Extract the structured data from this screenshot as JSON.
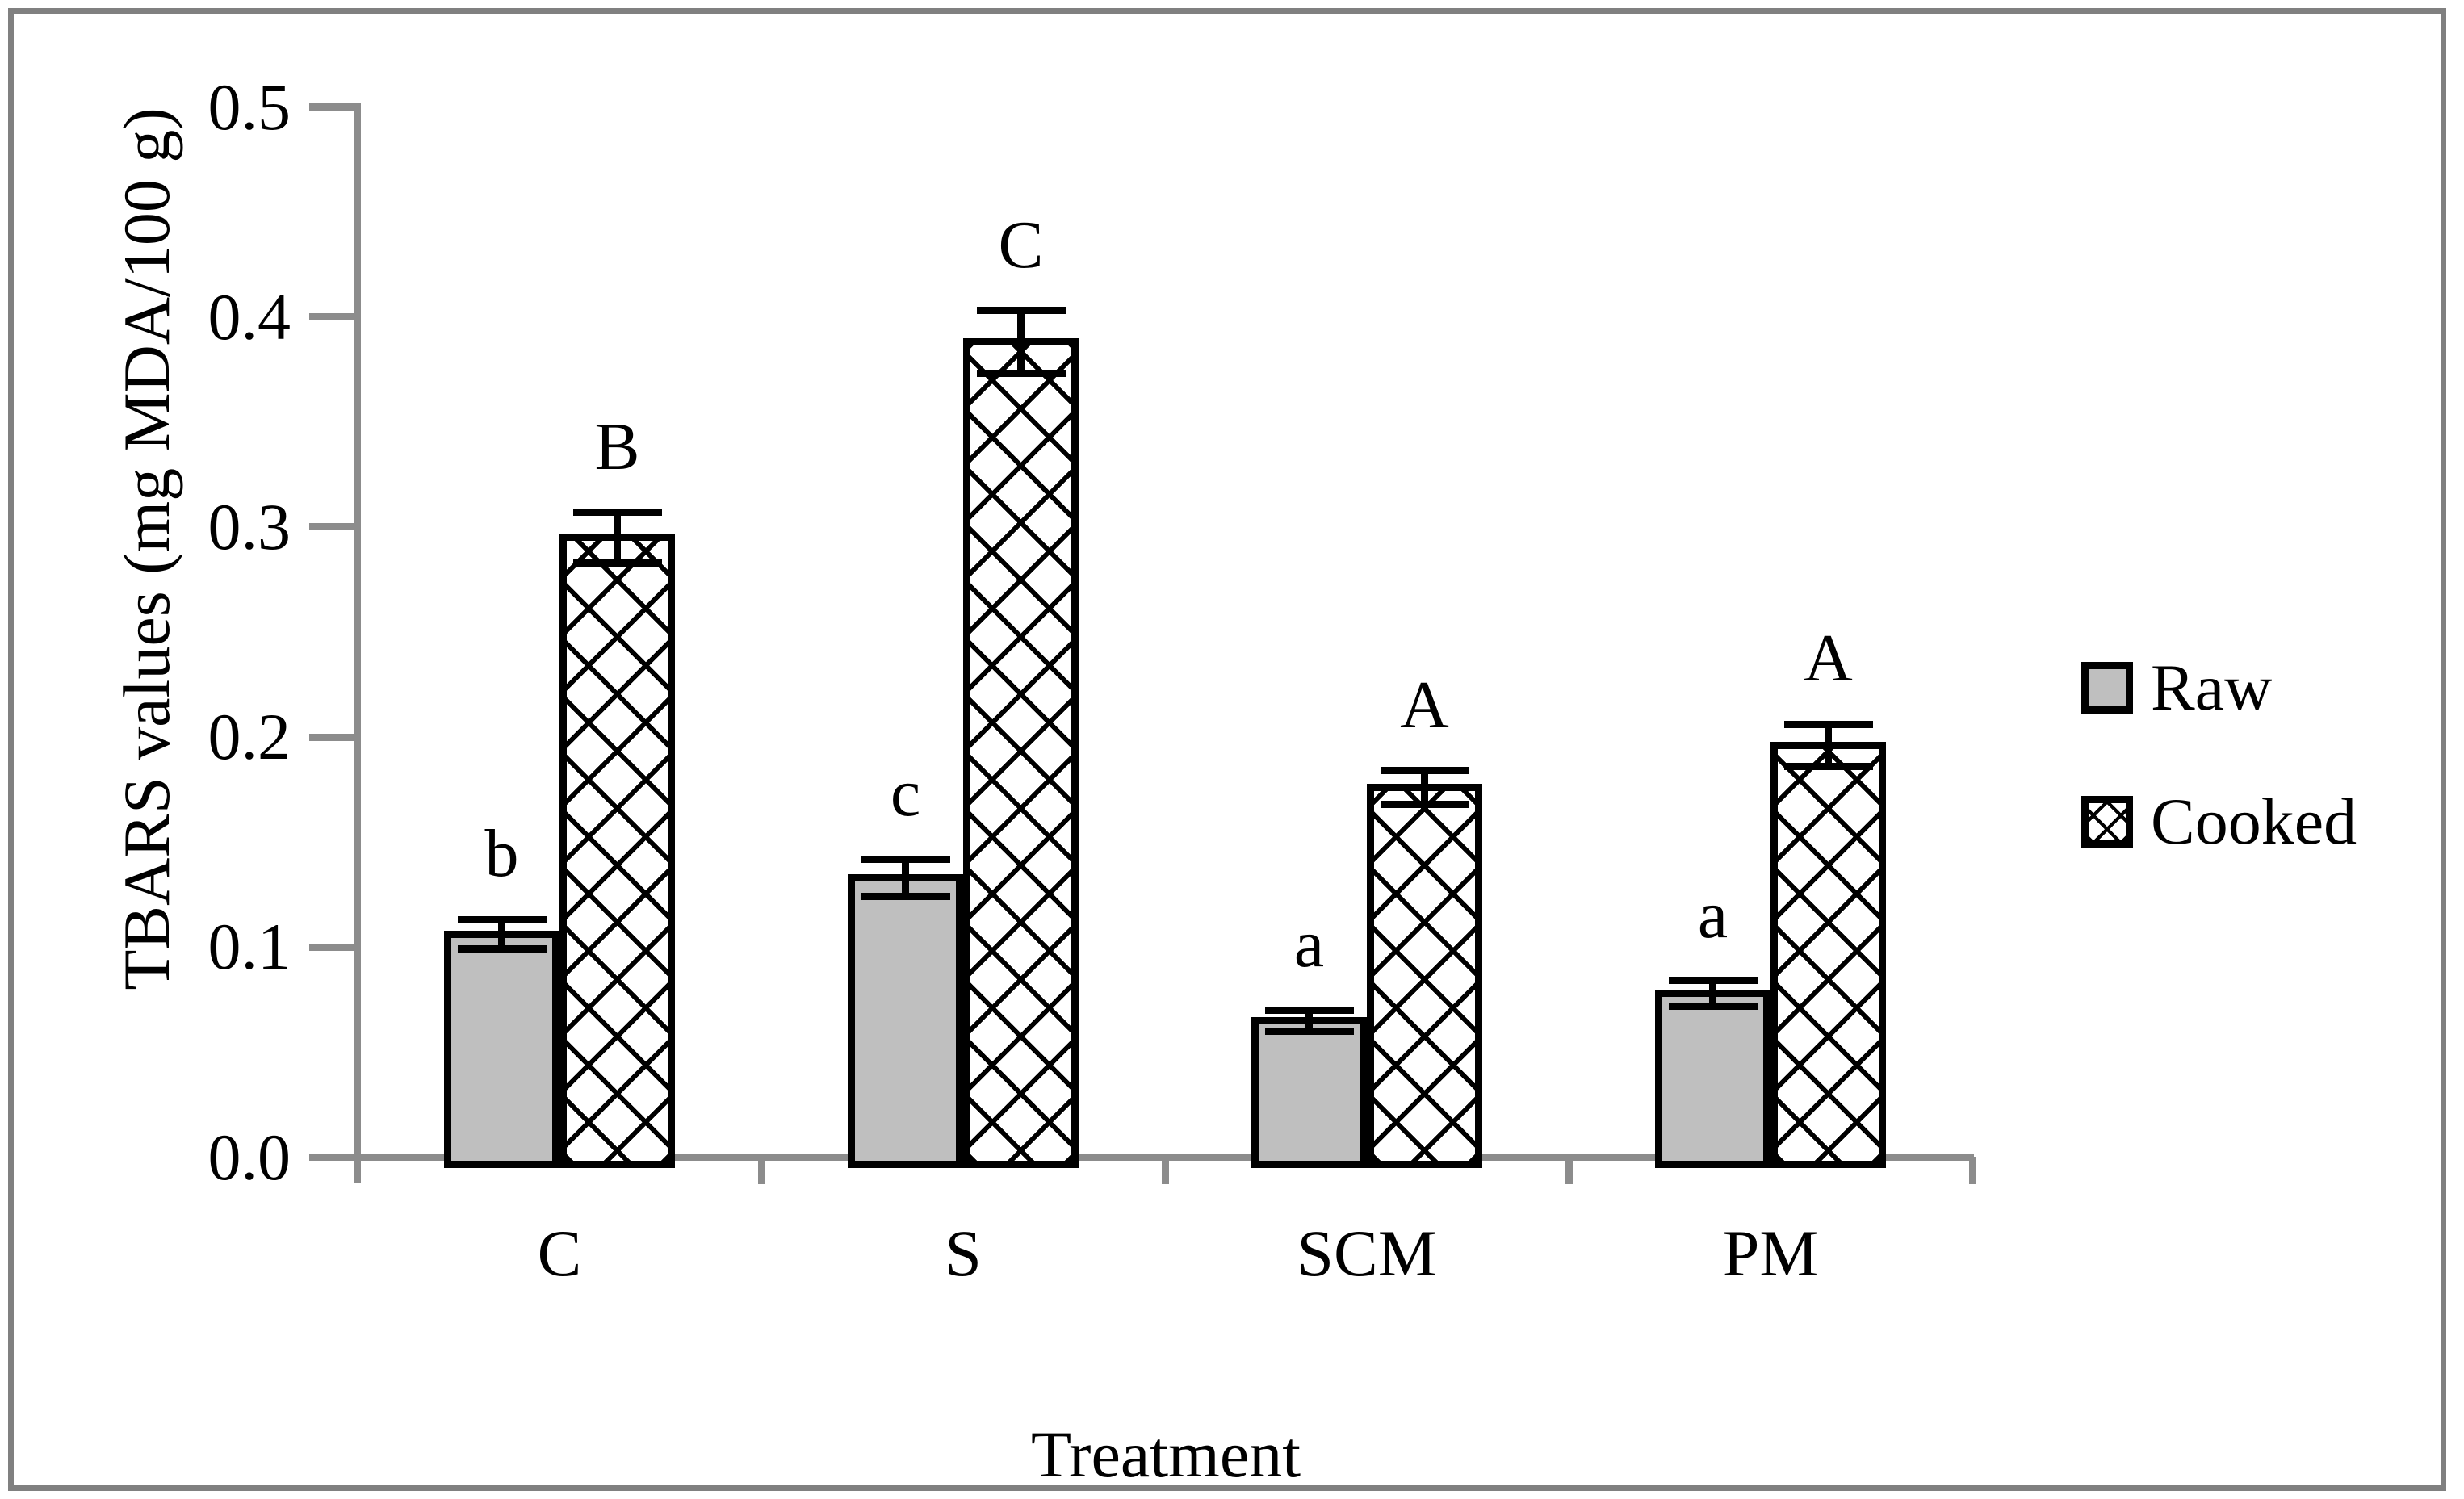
{
  "figure": {
    "background": "#ffffff",
    "frame_color": "#808080",
    "axis_color": "#8c8c8c",
    "text_color": "#000000"
  },
  "chart_data": {
    "type": "bar",
    "title": "",
    "xlabel": "Treatment",
    "ylabel": "TBARS values (mg MDA/100 g)",
    "categories": [
      "C",
      "S",
      "SCM",
      "PM"
    ],
    "series": [
      {
        "name": "Raw",
        "fill": "#bfbfbf",
        "pattern": "solid",
        "values": [
          0.106,
          0.133,
          0.065,
          0.078
        ],
        "errors": [
          0.007,
          0.009,
          0.005,
          0.006
        ],
        "letters": [
          "b",
          "c",
          "a",
          "a"
        ]
      },
      {
        "name": "Cooked",
        "fill": "#ffffff",
        "pattern": "crosshatch",
        "values": [
          0.295,
          0.388,
          0.176,
          0.196
        ],
        "errors": [
          0.012,
          0.015,
          0.008,
          0.01
        ],
        "letters": [
          "B",
          "C",
          "A",
          "A"
        ]
      }
    ],
    "ylim": [
      0.0,
      0.5
    ],
    "yticks": [
      "0.0",
      "0.1",
      "0.2",
      "0.3",
      "0.4",
      "0.5"
    ],
    "grid": false,
    "legend_position": "right",
    "error_bars": true
  }
}
